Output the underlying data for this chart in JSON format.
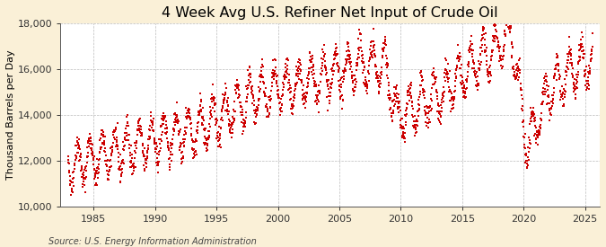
{
  "title": "4 Week Avg U.S. Refiner Net Input of Crude Oil",
  "ylabel": "Thousand Barrels per Day",
  "source": "Source: U.S. Energy Information Administration",
  "ylim": [
    10000,
    18000
  ],
  "yticks": [
    10000,
    12000,
    14000,
    16000,
    18000
  ],
  "ytick_labels": [
    "10,000",
    "12,000",
    "14,000",
    "16,000",
    "18,000"
  ],
  "xticks": [
    1985,
    1990,
    1995,
    2000,
    2005,
    2010,
    2015,
    2020,
    2025
  ],
  "xlim": [
    1982.3,
    2026.2
  ],
  "line_color": "#CC0000",
  "bg_color": "#FAF0D7",
  "plot_bg_color": "#FFFFFF",
  "grid_color": "#BBBBBB",
  "title_fontsize": 11.5,
  "label_fontsize": 8,
  "tick_fontsize": 8,
  "source_fontsize": 7
}
